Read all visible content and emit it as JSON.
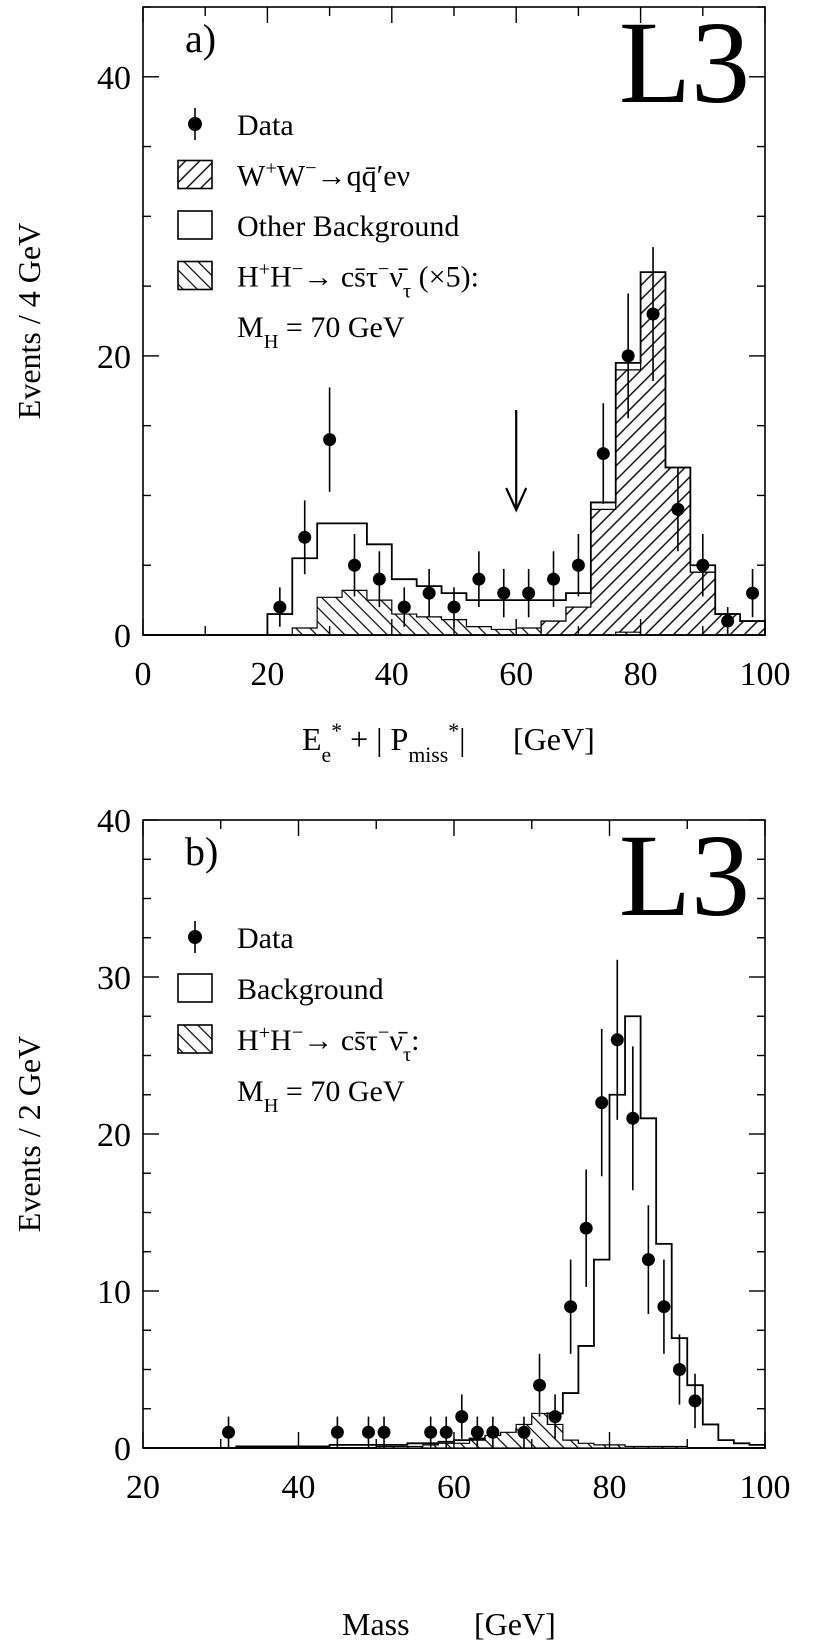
{
  "chart_data": [
    {
      "type": "histogram",
      "panel_label": "a)",
      "logo": "L3",
      "xlabel": {
        "main": "E",
        "sub": "e",
        "sup": "*",
        "mid": " + | P",
        "sub2": "miss",
        "sup2": "*",
        "end": "|",
        "unit": "[GeV]"
      },
      "ylabel": "Events / 4  GeV",
      "xlim": [
        0,
        100
      ],
      "ylim": [
        0,
        45
      ],
      "xticks": [
        "0",
        "20",
        "40",
        "60",
        "80",
        "100"
      ],
      "yticks": [
        "0",
        "20",
        "40"
      ],
      "cut_arrow_x": 60,
      "legend": [
        {
          "id": "data",
          "symbol": "point",
          "parts": [
            {
              "t": "Data"
            }
          ]
        },
        {
          "id": "ww",
          "symbol": "hatch-right",
          "parts": [
            {
              "t": "W"
            },
            {
              "t": "+",
              "sup": true
            },
            {
              "t": "W"
            },
            {
              "t": "−",
              "sup": true
            },
            {
              "t": "→qq̄′eν"
            }
          ]
        },
        {
          "id": "other",
          "symbol": "box",
          "parts": [
            {
              "t": "Other Background"
            }
          ]
        },
        {
          "id": "hh",
          "symbol": "hatch-left",
          "parts": [
            {
              "t": "H"
            },
            {
              "t": "+",
              "sup": true
            },
            {
              "t": "H"
            },
            {
              "t": "−",
              "sup": true
            },
            {
              "t": "→ cs̄τ"
            },
            {
              "t": "−",
              "sup": true
            },
            {
              "t": "ν̄"
            },
            {
              "t": "τ",
              "sub": true
            },
            {
              "t": " (×5):"
            }
          ]
        },
        {
          "id": "mh",
          "symbol": "none",
          "parts": [
            {
              "t": "M"
            },
            {
              "t": "H",
              "sub": true
            },
            {
              "t": " = 70  GeV"
            }
          ]
        }
      ],
      "bin_edges": [
        0,
        4,
        8,
        12,
        16,
        20,
        24,
        28,
        32,
        36,
        40,
        44,
        48,
        52,
        56,
        60,
        64,
        68,
        72,
        76,
        80,
        84,
        88,
        92,
        96,
        100
      ],
      "total_background": [
        0,
        0,
        0,
        0,
        0,
        1.5,
        5.5,
        8.0,
        8.0,
        6.5,
        4.0,
        3.5,
        3.0,
        2.5,
        2.5,
        2.5,
        2.5,
        3.0,
        9.5,
        19.5,
        26.0,
        12.0,
        5.0,
        1.5,
        1.0
      ],
      "ww_background": [
        0,
        0,
        0,
        0,
        0,
        0,
        0,
        0,
        0,
        0,
        0,
        0,
        0,
        0,
        0,
        0,
        1.0,
        2.0,
        9.0,
        19.0,
        26.0,
        12.0,
        4.5,
        1.5,
        1.0
      ],
      "signal_x5": [
        0,
        0,
        0,
        0,
        0,
        0,
        0.5,
        2.7,
        3.2,
        2.5,
        1.5,
        1.3,
        1.1,
        0.6,
        0.4,
        0.5,
        0,
        0,
        0,
        0.2,
        0,
        0,
        0,
        0,
        0
      ],
      "data_points": {
        "x": [
          22,
          26,
          30,
          34,
          38,
          42,
          46,
          50,
          54,
          58,
          62,
          66,
          70,
          74,
          78,
          82,
          86,
          90,
          94,
          98
        ],
        "y": [
          2,
          7,
          14,
          5,
          4,
          2,
          3,
          2,
          4,
          3,
          3,
          4,
          5,
          13,
          20,
          23,
          9,
          5,
          1,
          3
        ]
      }
    },
    {
      "type": "histogram",
      "panel_label": "b)",
      "logo": "L3",
      "xlabel": {
        "main": "Mass",
        "unit": "[GeV]"
      },
      "ylabel": "Events / 2  GeV",
      "xlim": [
        20,
        100
      ],
      "ylim": [
        0,
        40
      ],
      "xticks": [
        "20",
        "40",
        "60",
        "80",
        "100"
      ],
      "yticks": [
        "0",
        "10",
        "20",
        "30",
        "40"
      ],
      "legend": [
        {
          "id": "data",
          "symbol": "point",
          "parts": [
            {
              "t": "Data"
            }
          ]
        },
        {
          "id": "bkg",
          "symbol": "box",
          "parts": [
            {
              "t": "Background"
            }
          ]
        },
        {
          "id": "hh",
          "symbol": "hatch-left",
          "parts": [
            {
              "t": "H"
            },
            {
              "t": "+",
              "sup": true
            },
            {
              "t": "H"
            },
            {
              "t": "−",
              "sup": true
            },
            {
              "t": "→ cs̄τ"
            },
            {
              "t": "−",
              "sup": true
            },
            {
              "t": "ν̄"
            },
            {
              "t": "τ",
              "sub": true
            },
            {
              "t": ":"
            }
          ]
        },
        {
          "id": "mh",
          "symbol": "none",
          "parts": [
            {
              "t": "M"
            },
            {
              "t": "H",
              "sub": true
            },
            {
              "t": " = 70  GeV"
            }
          ]
        }
      ],
      "bin_edges": [
        20,
        22,
        24,
        26,
        28,
        30,
        32,
        34,
        36,
        38,
        40,
        42,
        44,
        46,
        48,
        50,
        52,
        54,
        56,
        58,
        60,
        62,
        64,
        66,
        68,
        70,
        72,
        74,
        76,
        78,
        80,
        82,
        84,
        86,
        88,
        90,
        92,
        94,
        96,
        98,
        100
      ],
      "background": [
        0,
        0,
        0,
        0,
        0,
        0,
        0.1,
        0.1,
        0.1,
        0.1,
        0.1,
        0.1,
        0.2,
        0.2,
        0.2,
        0.2,
        0.2,
        0.3,
        0.3,
        0.4,
        0.5,
        0.6,
        0.7,
        0.9,
        1.2,
        1.5,
        2.2,
        3.5,
        6.5,
        12.0,
        22.5,
        27.5,
        21.0,
        13.0,
        7.0,
        4.0,
        1.5,
        0.5,
        0.3,
        0.2
      ],
      "signal": [
        0,
        0,
        0,
        0,
        0,
        0,
        0,
        0,
        0,
        0,
        0,
        0,
        0,
        0,
        0,
        0.1,
        0.1,
        0.1,
        0.2,
        0.3,
        0.3,
        0.5,
        0.8,
        1.0,
        1.5,
        2.2,
        1.5,
        0.5,
        0.3,
        0.2,
        0.2,
        0.1,
        0.1,
        0.1,
        0.1,
        0,
        0,
        0,
        0,
        0
      ],
      "data_points": {
        "x": [
          31,
          45,
          49,
          51,
          57,
          59,
          61,
          63,
          65,
          69,
          71,
          73,
          75,
          77,
          79,
          81,
          83,
          85,
          87,
          89,
          91
        ],
        "y": [
          1,
          1,
          1,
          1,
          1,
          1,
          2,
          1,
          1,
          1,
          4,
          2,
          9,
          14,
          22,
          26,
          21,
          12,
          9,
          5,
          3
        ]
      }
    }
  ]
}
